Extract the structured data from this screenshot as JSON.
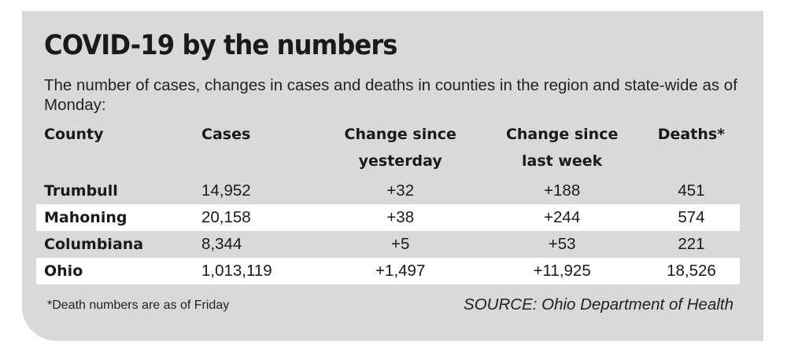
{
  "chart_data": {
    "type": "table",
    "title": "COVID-19 by the numbers",
    "subtitle": "The number of cases, changes in cases and deaths in counties in the region and state-wide as of Monday:",
    "columns": [
      "County",
      "Cases",
      "Change since yesterday",
      "Change since last week",
      "Deaths*"
    ],
    "header_lines": [
      [
        "County",
        ""
      ],
      [
        "Cases",
        ""
      ],
      [
        "Change since",
        "yesterday"
      ],
      [
        "Change since",
        "last week"
      ],
      [
        "Deaths*",
        ""
      ]
    ],
    "rows": [
      {
        "county": "Trumbull",
        "cases": "14,952",
        "change_yesterday": "+32",
        "change_week": "+188",
        "deaths": "451"
      },
      {
        "county": "Mahoning",
        "cases": "20,158",
        "change_yesterday": "+38",
        "change_week": "+244",
        "deaths": "574"
      },
      {
        "county": "Columbiana",
        "cases": "8,344",
        "change_yesterday": "+5",
        "change_week": "+53",
        "deaths": "221"
      },
      {
        "county": "Ohio",
        "cases": "1,013,119",
        "change_yesterday": "+1,497",
        "change_week": "+11,925",
        "deaths": "18,526"
      }
    ],
    "footnote": "*Death numbers are as of Friday",
    "source": "SOURCE: Ohio Department of Health"
  },
  "colors": {
    "card_background": "#d9d9d9",
    "shaded_row": "#ffffff",
    "text": "#1a1a1a"
  }
}
